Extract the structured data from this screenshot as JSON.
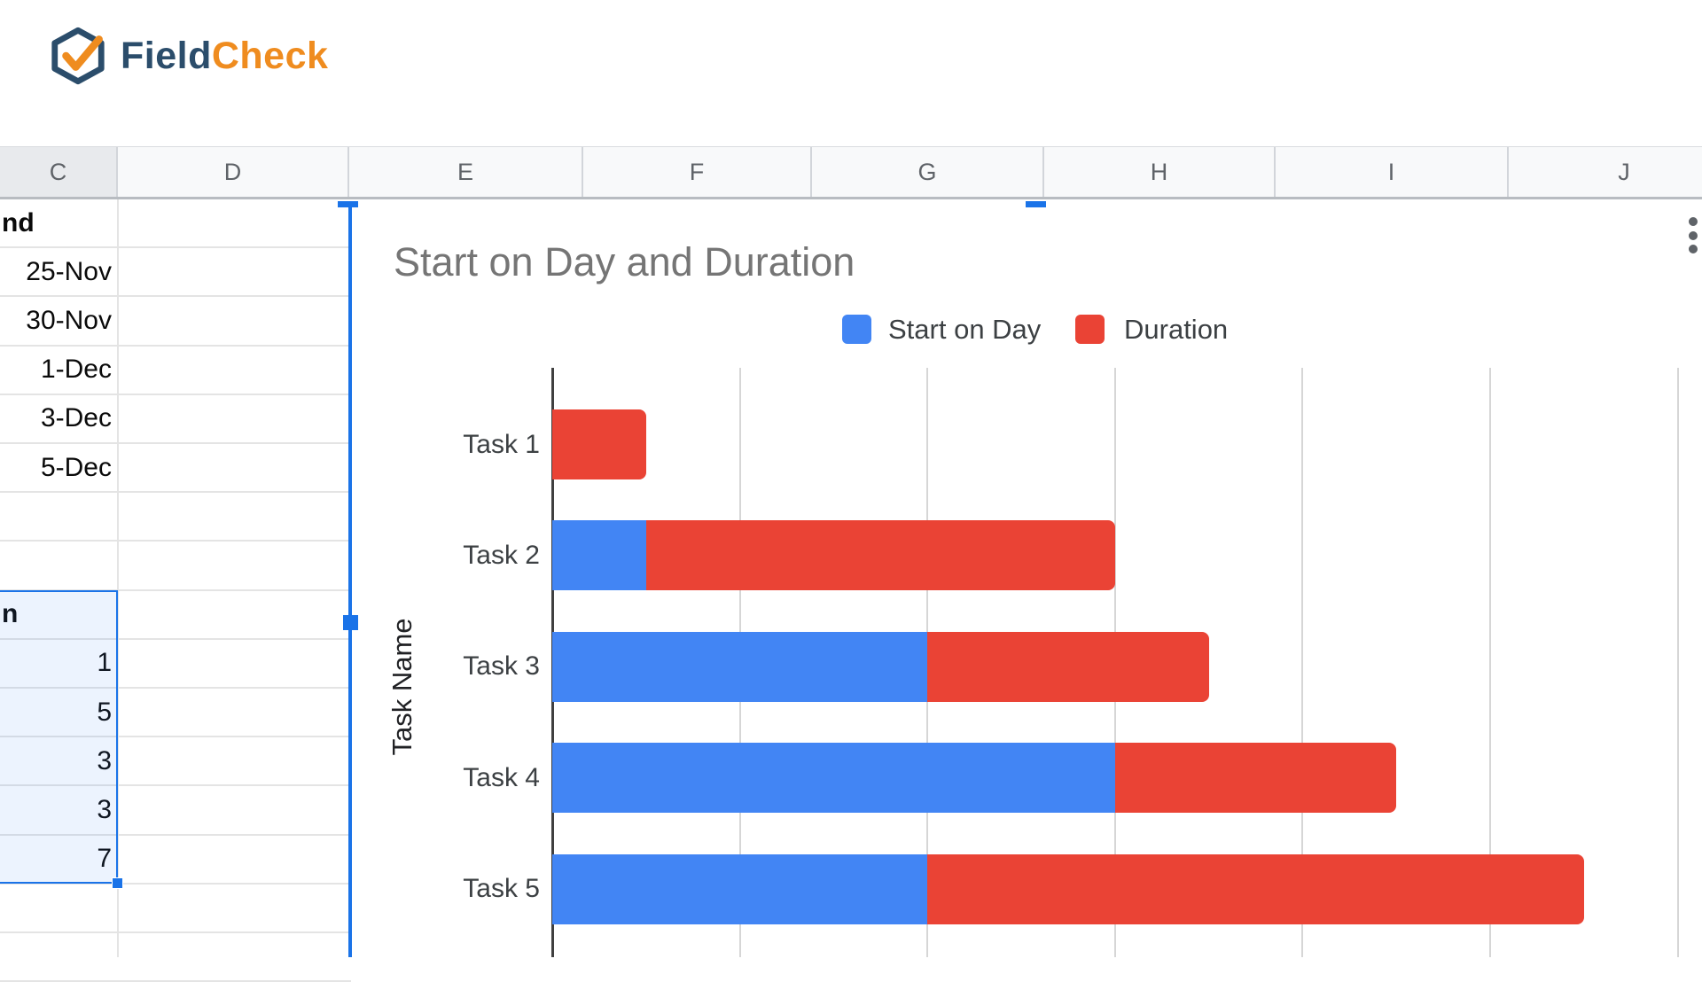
{
  "brand": {
    "text_primary": "Field",
    "text_secondary": "Check",
    "primary_color": "#2b4d6b",
    "secondary_color": "#ef8c1f"
  },
  "spreadsheet": {
    "column_headers": [
      "C",
      "D",
      "E",
      "F",
      "G",
      "H",
      "I",
      "J"
    ],
    "selected_header": "C",
    "selection_color": "#1a73e8",
    "col_c_cells": [
      {
        "text": "nd",
        "bold": true
      },
      {
        "text": "25-Nov"
      },
      {
        "text": "30-Nov"
      },
      {
        "text": "1-Dec"
      },
      {
        "text": "3-Dec"
      },
      {
        "text": "5-Dec"
      },
      {
        "text": ""
      },
      {
        "text": ""
      },
      {
        "text": "n",
        "bold": true,
        "selected": true
      },
      {
        "text": "1",
        "selected": true
      },
      {
        "text": "5",
        "selected": true
      },
      {
        "text": "3",
        "selected": true
      },
      {
        "text": "3",
        "selected": true
      },
      {
        "text": "7",
        "selected": true
      },
      {
        "text": ""
      },
      {
        "text": ""
      }
    ]
  },
  "chart_data": {
    "type": "bar",
    "orientation": "horizontal",
    "stacked": true,
    "title": "Start on Day and Duration",
    "categories": [
      "Task 1",
      "Task 2",
      "Task 3",
      "Task 4",
      "Task 5"
    ],
    "series": [
      {
        "name": "Start on Day",
        "color": "#4285f4",
        "values": [
          0,
          1,
          4,
          6,
          4
        ]
      },
      {
        "name": "Duration",
        "color": "#ea4335",
        "values": [
          1,
          5,
          3,
          3,
          7
        ]
      }
    ],
    "xlabel": "",
    "ylabel": "Task Name",
    "xlim": [
      0,
      12
    ],
    "gridline_step": 2,
    "grid": true,
    "legend_position": "top",
    "axis_color": "#404040",
    "gridline_color": "#d6d6d6",
    "title_color": "#757575"
  }
}
